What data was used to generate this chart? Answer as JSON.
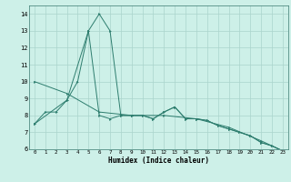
{
  "title": "",
  "xlabel": "Humidex (Indice chaleur)",
  "bg_color": "#cdf0e8",
  "line_color": "#2d7d6e",
  "grid_color": "#aad4cc",
  "xlim": [
    -0.5,
    23.5
  ],
  "ylim": [
    6,
    14.5
  ],
  "yticks": [
    6,
    7,
    8,
    9,
    10,
    11,
    12,
    13,
    14
  ],
  "xticks": [
    0,
    1,
    2,
    3,
    4,
    5,
    6,
    7,
    8,
    9,
    10,
    11,
    12,
    13,
    14,
    15,
    16,
    17,
    18,
    19,
    20,
    21,
    22,
    23
  ],
  "line1_x": [
    0,
    1,
    2,
    3,
    4,
    5,
    6,
    7,
    8,
    9,
    10,
    11,
    12,
    13,
    14,
    15,
    16,
    17,
    18,
    19,
    20,
    21,
    22,
    23
  ],
  "line1_y": [
    7.5,
    8.2,
    8.2,
    8.9,
    10.0,
    13.0,
    14.0,
    13.0,
    8.0,
    8.0,
    8.0,
    7.8,
    8.2,
    8.5,
    7.8,
    7.8,
    7.7,
    7.4,
    7.2,
    7.0,
    6.8,
    6.4,
    6.2,
    5.9
  ],
  "line2_x": [
    0,
    3,
    5,
    6,
    7,
    8,
    9,
    10,
    11,
    12,
    13,
    14,
    15,
    16,
    17,
    18,
    19,
    20,
    21,
    22,
    23
  ],
  "line2_y": [
    7.5,
    8.9,
    13.0,
    8.0,
    7.8,
    8.0,
    8.0,
    8.0,
    7.8,
    8.2,
    8.5,
    7.8,
    7.8,
    7.7,
    7.4,
    7.2,
    7.0,
    6.8,
    6.4,
    6.2,
    5.9
  ],
  "line3_x": [
    0,
    3,
    6,
    9,
    12,
    15,
    18,
    21,
    23
  ],
  "line3_y": [
    10.0,
    9.3,
    8.2,
    8.0,
    8.0,
    7.8,
    7.3,
    6.5,
    5.9
  ]
}
